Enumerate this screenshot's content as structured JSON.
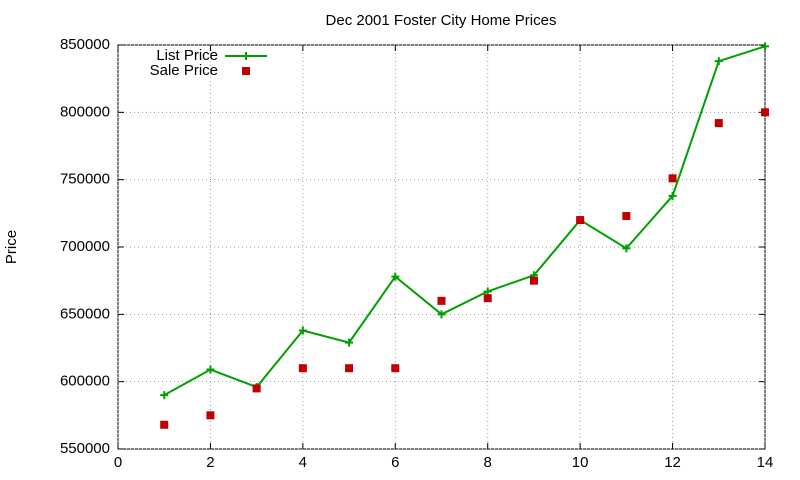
{
  "chart_data": {
    "type": "line",
    "title": "Dec 2001 Foster City Home Prices",
    "y_label": "Price",
    "x": [
      1,
      2,
      3,
      4,
      5,
      6,
      7,
      8,
      9,
      10,
      11,
      12,
      13,
      14
    ],
    "series": [
      {
        "name": "List Price",
        "color": "#00a000",
        "style": "linespoints",
        "values": [
          590000,
          609000,
          596000,
          638000,
          629000,
          678000,
          650000,
          667000,
          679000,
          720000,
          699000,
          738000,
          838000,
          849000
        ]
      },
      {
        "name": "Sale Price",
        "color": "#c00000",
        "style": "points",
        "values": [
          568000,
          575000,
          595000,
          610000,
          610000,
          610000,
          660000,
          662000,
          675000,
          720000,
          723000,
          751000,
          792000,
          800000
        ]
      }
    ],
    "xlim": [
      0,
      14
    ],
    "xticks": [
      0,
      2,
      4,
      6,
      8,
      10,
      12,
      14
    ],
    "ylim": [
      550000,
      850000
    ],
    "yticks": [
      550000,
      600000,
      650000,
      700000,
      750000,
      800000,
      850000
    ],
    "grid": true,
    "legend": "top-left"
  }
}
